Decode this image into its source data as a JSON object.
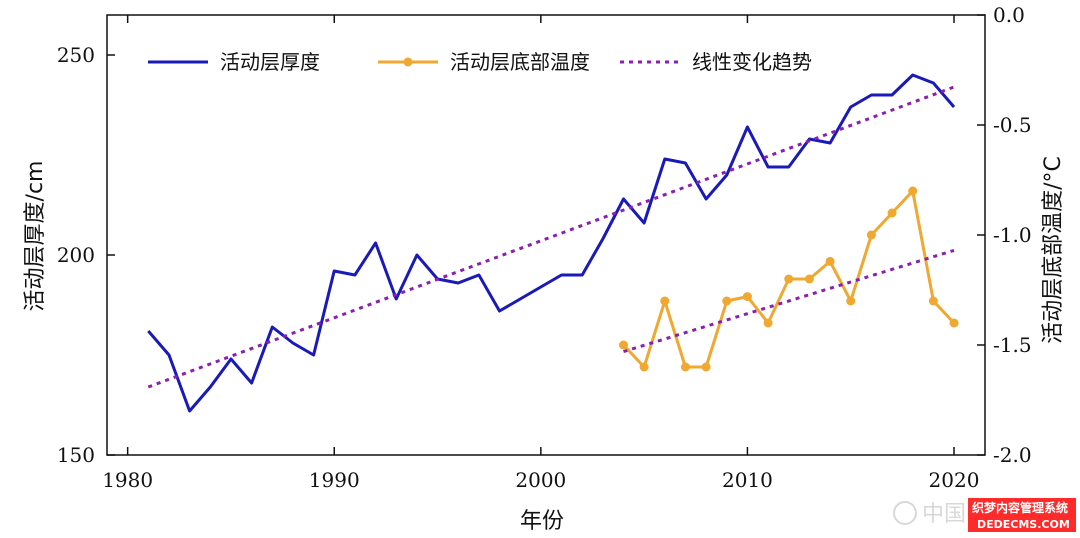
{
  "chart_data": {
    "type": "line",
    "xlabel": "年份",
    "ylabel_left": "活动层厚度/cm",
    "ylabel_right": "活动层底部温度/°C",
    "xlim": [
      1979,
      2021.5
    ],
    "ylim_left": [
      150,
      260
    ],
    "ylim_right": [
      -2.0,
      0.0
    ],
    "x_ticks": [
      1980,
      1990,
      2000,
      2010,
      2020
    ],
    "y_ticks_left": [
      150,
      200,
      250
    ],
    "y_ticks_right": [
      -2.0,
      -1.5,
      -1.0,
      -0.5,
      0.0
    ],
    "y_tick_labels_right": [
      "-2.0",
      "-1.5",
      "-1.0",
      "-0.5",
      "0.0"
    ],
    "grid": false,
    "legend_position": "top",
    "series": [
      {
        "name": "活动层厚度",
        "axis": "left",
        "color": "#1a1ab8",
        "style": "solid",
        "x": [
          1981,
          1982,
          1983,
          1984,
          1985,
          1986,
          1987,
          1988,
          1989,
          1990,
          1991,
          1992,
          1993,
          1994,
          1995,
          1996,
          1997,
          1998,
          1999,
          2000,
          2001,
          2002,
          2003,
          2004,
          2005,
          2006,
          2007,
          2008,
          2009,
          2010,
          2011,
          2012,
          2013,
          2014,
          2015,
          2016,
          2017,
          2018,
          2019,
          2020
        ],
        "y": [
          181,
          175,
          161,
          167,
          174,
          168,
          182,
          178,
          175,
          196,
          195,
          203,
          189,
          200,
          194,
          193,
          195,
          186,
          189,
          192,
          195,
          195,
          204,
          214,
          208,
          224,
          223,
          214,
          220,
          232,
          222,
          222,
          229,
          228,
          237,
          240,
          240,
          245,
          243,
          237
        ]
      },
      {
        "name": "活动层底部温度",
        "axis": "right",
        "color": "#f0a830",
        "style": "solid-markers",
        "x": [
          2004,
          2005,
          2006,
          2007,
          2008,
          2009,
          2010,
          2011,
          2012,
          2013,
          2014,
          2015,
          2016,
          2017,
          2018,
          2019,
          2020
        ],
        "y": [
          -1.5,
          -1.6,
          -1.3,
          -1.6,
          -1.6,
          -1.3,
          -1.28,
          -1.4,
          -1.2,
          -1.2,
          -1.12,
          -1.3,
          -1.0,
          -0.9,
          -0.8,
          -1.3,
          -1.4
        ]
      },
      {
        "name": "线性变化趋势",
        "axis": "left",
        "color": "#8a1fb0",
        "style": "dotted",
        "x": [
          1981,
          2020
        ],
        "y": [
          167,
          242
        ]
      },
      {
        "name": "",
        "axis": "right",
        "color": "#8a1fb0",
        "style": "dotted",
        "x": [
          2004,
          2020
        ],
        "y": [
          -1.53,
          -1.07
        ]
      }
    ]
  },
  "watermark": {
    "text_cn": "中国",
    "line1": "织梦内容管理系统",
    "line2": "DEDECMS.COM"
  }
}
